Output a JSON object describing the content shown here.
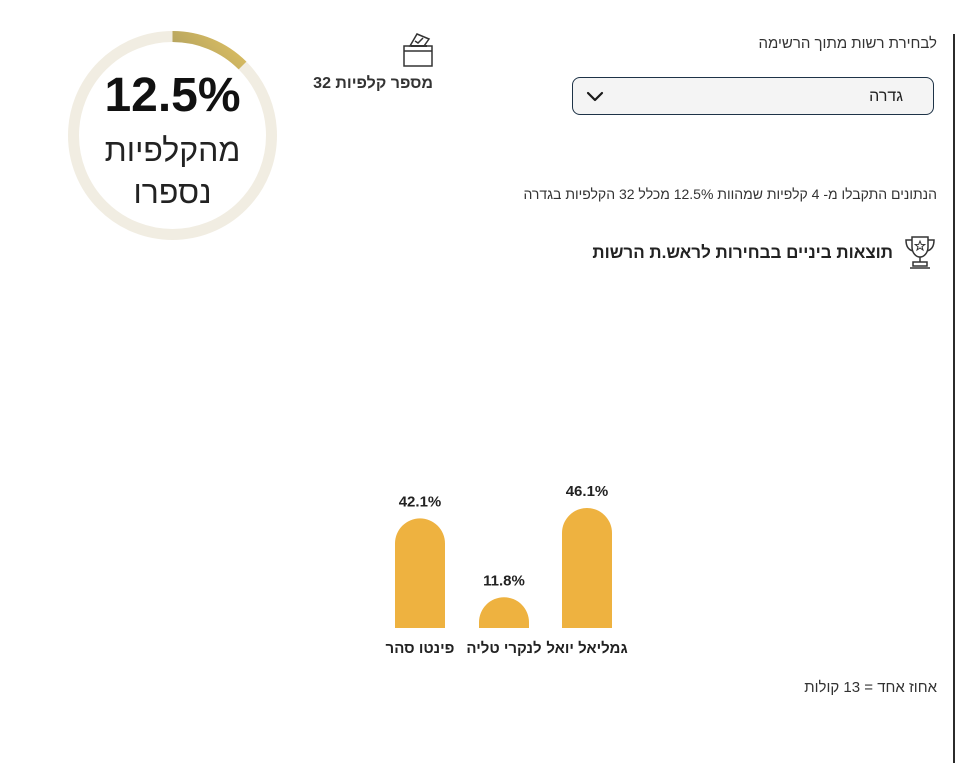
{
  "selector": {
    "label": "לבחירת רשות מתוך הרשימה",
    "value": "גדרה",
    "icon": "chevron-down-icon"
  },
  "ballots": {
    "icon": "ballot-box-icon",
    "label": "מספר קלפיות 32"
  },
  "counted": {
    "percent": "12.5%",
    "fraction": 0.125,
    "line1": "מהקלפיות",
    "line2": "נספרו"
  },
  "note": "הנתונים התקבלו מ- 4 קלפיות שמהוות 12.5% מכלל 32 הקלפיות בגדרה",
  "results": {
    "icon": "trophy-icon",
    "title": "תוצאות ביניים בבחירות לראש.ת הרשות"
  },
  "chart_data": {
    "type": "bar",
    "categories": [
      "גמליאל יואל",
      "לנקרי טליה",
      "פינטו סהר"
    ],
    "values": [
      46.1,
      11.8,
      42.1
    ],
    "value_labels": [
      "46.1%",
      "11.8%",
      "42.1%"
    ],
    "bar_color": "#eeb240",
    "direction": "rtl"
  },
  "seat_note": "אחוז אחד = 13 קולות",
  "colors": {
    "ring_track": "#f1ede2",
    "ring_gradient_start": "#f0cc63",
    "ring_gradient_end": "#1a3a56",
    "bar": "#eeb240",
    "select_border": "#1e3347"
  }
}
